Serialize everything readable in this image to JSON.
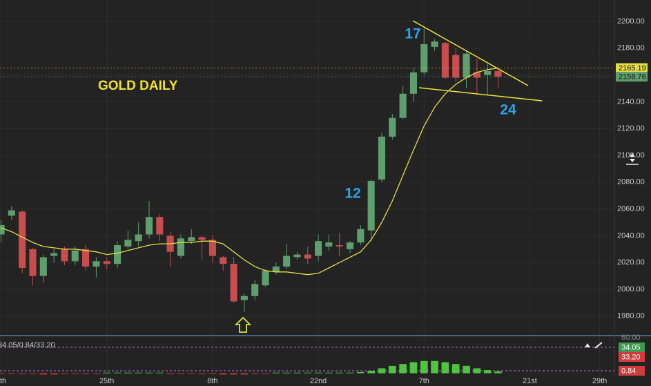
{
  "chart_data": {
    "type": "candlestick",
    "title": "GOLD DAILY",
    "open": [
      2041,
      2055,
      2058,
      2030,
      2010,
      2025,
      2030,
      2021,
      2030,
      2017,
      2021,
      2019,
      2032,
      2036,
      2041,
      2054,
      2040,
      2025,
      2036,
      2039,
      2037,
      2024,
      2019,
      1992,
      1995,
      2003,
      2013,
      2017,
      2024,
      2026,
      2025,
      2032,
      2033,
      2030,
      2035,
      2044,
      2082,
      2114,
      2128,
      2146,
      2162,
      2181,
      2184,
      2175,
      2158,
      2162,
      2160,
      2163
    ],
    "high": [
      2052,
      2062,
      2059,
      2031,
      2026,
      2030,
      2032,
      2032,
      2033,
      2024,
      2024,
      2036,
      2044,
      2050,
      2066,
      2056,
      2043,
      2041,
      2045,
      2040,
      2040,
      2025,
      2024,
      1997,
      2007,
      2015,
      2020,
      2034,
      2028,
      2032,
      2041,
      2041,
      2042,
      2036,
      2048,
      2082,
      2117,
      2131,
      2152,
      2165,
      2195,
      2187,
      2185,
      2180,
      2178,
      2172,
      2168,
      2166
    ],
    "low": [
      2035,
      2052,
      2012,
      2003,
      2005,
      2020,
      2018,
      2018,
      2014,
      2009,
      2015,
      2016,
      2030,
      2032,
      2038,
      2036,
      2017,
      2023,
      2034,
      2022,
      2020,
      2014,
      1990,
      1983,
      1992,
      2002,
      2011,
      2015,
      2022,
      2019,
      2021,
      2029,
      2025,
      2027,
      2033,
      2036,
      2080,
      2112,
      2127,
      2140,
      2160,
      2178,
      2157,
      2155,
      2150,
      2145,
      2145,
      2150
    ],
    "close": [
      2048,
      2059,
      2016,
      2010,
      2024,
      2027,
      2021,
      2029,
      2017,
      2021,
      2019,
      2033,
      2037,
      2041,
      2054,
      2041,
      2028,
      2038,
      2039,
      2037,
      2025,
      2019,
      1991,
      1995,
      2004,
      2014,
      2017,
      2025,
      2026,
      2023,
      2036,
      2035,
      2032,
      2035,
      2045,
      2081,
      2114,
      2128,
      2146,
      2162,
      2183,
      2185,
      2158,
      2158,
      2176,
      2158,
      2163,
      2158.76
    ],
    "up_color": "#5e9f6e",
    "down_color": "#c94d4d",
    "moving_average": {
      "color": "#e6dc45",
      "values": [
        2046,
        2043,
        2039,
        2035,
        2032,
        2031,
        2030,
        2030,
        2029,
        2028,
        2026,
        2027,
        2029,
        2031,
        2033,
        2034,
        2034,
        2035,
        2035,
        2036,
        2036,
        2034,
        2028,
        2022,
        2017,
        2014,
        2013,
        2013,
        2012,
        2011,
        2012,
        2016,
        2020,
        2024,
        2028,
        2037,
        2050,
        2066,
        2085,
        2104,
        2122,
        2136,
        2146,
        2153,
        2158,
        2162,
        2164,
        2165.19
      ]
    },
    "ylim": [
      1966,
      2216
    ],
    "yticks": [
      {
        "value": 1980,
        "label": "1980.00"
      },
      {
        "value": 2000,
        "label": "2000.00"
      },
      {
        "value": 2020,
        "label": "2020.00"
      },
      {
        "value": 2040,
        "label": "2040.00"
      },
      {
        "value": 2060,
        "label": "2060.00"
      },
      {
        "value": 2080,
        "label": "2080.00"
      },
      {
        "value": 2100,
        "label": "2100.00"
      },
      {
        "value": 2120,
        "label": "2120.00"
      },
      {
        "value": 2140,
        "label": "2140.00"
      },
      {
        "value": 2160,
        "label": "2160.00"
      },
      {
        "value": 2180,
        "label": "2180.00"
      },
      {
        "value": 2200,
        "label": "2200.00"
      }
    ],
    "xlim": [
      -0.1,
      58
    ],
    "xticks": [
      {
        "value": -0.1,
        "label": "th"
      },
      {
        "value": 10,
        "label": "25th"
      },
      {
        "value": 20,
        "label": "8th"
      },
      {
        "value": 30,
        "label": "22nd"
      },
      {
        "value": 40,
        "label": "7th"
      },
      {
        "value": 50,
        "label": "21st"
      },
      {
        "value": 56.6,
        "label": "29th"
      }
    ],
    "grid": true,
    "annotations": [
      "17",
      "12",
      "24"
    ],
    "indicator": {
      "label": "34.05/0.84/33.20",
      "ylim": [
        -5,
        60
      ],
      "yticks": [
        {
          "value": 60,
          "label": "60.00"
        }
      ],
      "histogram": [
        -1,
        -1,
        -1,
        -1,
        -2,
        -2,
        -1,
        -1,
        -1,
        -1,
        1,
        1,
        1,
        1,
        1,
        1,
        -1,
        -1,
        -1,
        -1,
        -1,
        -2,
        -2,
        -2,
        -1,
        -1,
        1,
        1,
        1,
        1,
        1,
        1,
        1,
        1,
        2,
        4,
        8,
        12,
        15,
        18,
        20,
        20,
        18,
        15,
        12,
        8,
        5,
        3
      ],
      "tags": [
        {
          "value": 34.05,
          "label": "34.05",
          "color": "#3d9a4e"
        },
        {
          "value": 33.2,
          "label": "33.20",
          "color": "#d23b3b"
        },
        {
          "value": 0.84,
          "label": "0.84",
          "color": "#d23b3b"
        }
      ]
    }
  }
}
